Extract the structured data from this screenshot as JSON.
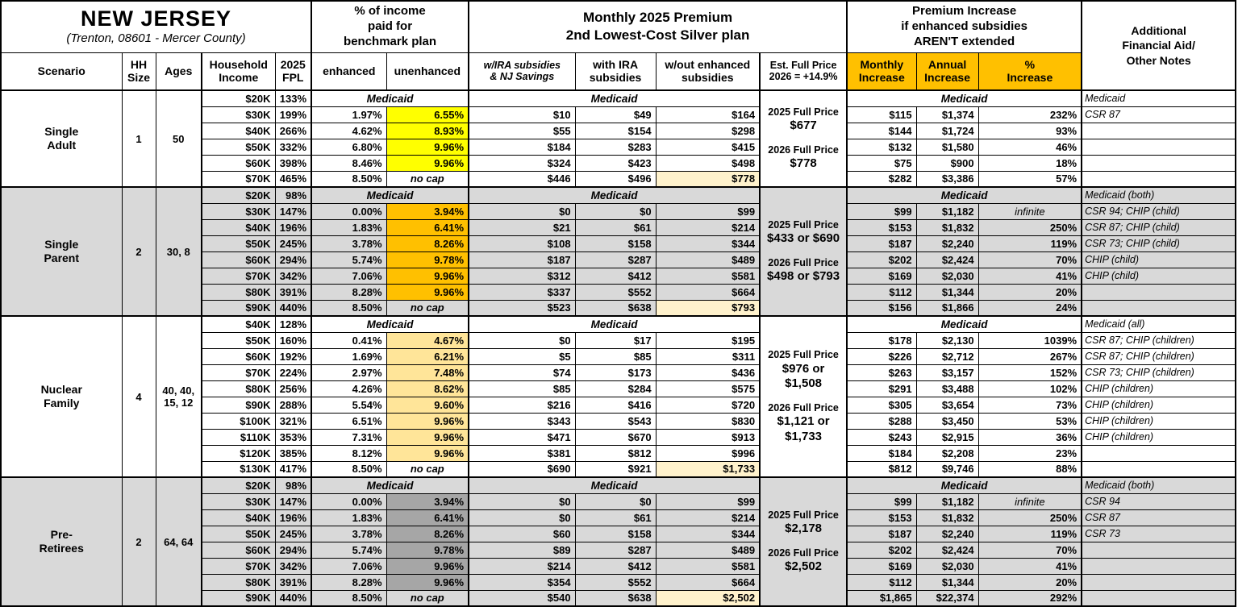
{
  "title": "NEW JERSEY",
  "subtitle": "(Trenton, 08601 - Mercer County)",
  "colors": {
    "header_accent": "#FFC000",
    "highlight_yellow": "#FFFF00",
    "highlight_orange": "#FFC000",
    "highlight_light_orange": "#FFE599",
    "highlight_gray": "#A6A6A6",
    "highlight_cream": "#FFF2CC",
    "section_gray": "#D9D9D9",
    "section_white": "#FFFFFF"
  },
  "labels": {
    "medicaid": "Medicaid",
    "no_cap": "no cap",
    "infinite": "infinite"
  },
  "headers": {
    "pct_income_group": "% of income\npaid for\nbenchmark plan",
    "premium_group": "Monthly 2025 Premium\n2nd Lowest-Cost Silver plan",
    "increase_group": "Premium Increase\nif enhanced subsidies\nAREN'T extended",
    "notes": "Additional\nFinancial Aid/\nOther Notes",
    "scenario": "Scenario",
    "hh_size": "HH\nSize",
    "ages": "Ages",
    "household_income": "Household\nIncome",
    "fpl": "2025\nFPL",
    "enhanced": "enhanced",
    "unenhanced": "unenhanced",
    "w_ira_nj": "w/IRA subsidies\n& NJ Savings",
    "with_ira": "with IRA\nsubsidies",
    "wout_enhanced": "w/out enhanced\nsubsidies",
    "est_full_price": "Est. Full Price\n2026 = +14.9%",
    "monthly_increase": "Monthly\nIncrease",
    "annual_increase": "Annual\nIncrease",
    "pct_increase": "%\nIncrease"
  },
  "sections": [
    {
      "scenario": "Single\nAdult",
      "hh_size": "1",
      "ages": "50",
      "bg": "#FFFFFF",
      "unenhanced_fill": "#FFFF00",
      "full_price": {
        "y2025_label": "2025 Full Price",
        "y2025_value": "$677",
        "y2026_label": "2026 Full Price",
        "y2026_value": "$778"
      },
      "rows": [
        {
          "income": "$20K",
          "fpl": "133%",
          "medicaid": true,
          "note": "Medicaid"
        },
        {
          "income": "$30K",
          "fpl": "199%",
          "enhanced": "1.97%",
          "unenhanced": "6.55%",
          "w_ira": "$10",
          "with_ira": "$49",
          "wout": "$164",
          "monthly": "$115",
          "annual": "$1,374",
          "pct": "232%",
          "note": "CSR 87"
        },
        {
          "income": "$40K",
          "fpl": "266%",
          "enhanced": "4.62%",
          "unenhanced": "8.93%",
          "w_ira": "$55",
          "with_ira": "$154",
          "wout": "$298",
          "monthly": "$144",
          "annual": "$1,724",
          "pct": "93%",
          "note": ""
        },
        {
          "income": "$50K",
          "fpl": "332%",
          "enhanced": "6.80%",
          "unenhanced": "9.96%",
          "w_ira": "$184",
          "with_ira": "$283",
          "wout": "$415",
          "monthly": "$132",
          "annual": "$1,580",
          "pct": "46%",
          "note": ""
        },
        {
          "income": "$60K",
          "fpl": "398%",
          "enhanced": "8.46%",
          "unenhanced": "9.96%",
          "w_ira": "$324",
          "with_ira": "$423",
          "wout": "$498",
          "monthly": "$75",
          "annual": "$900",
          "pct": "18%",
          "note": ""
        },
        {
          "income": "$70K",
          "fpl": "465%",
          "enhanced": "8.50%",
          "unenhanced": "no cap",
          "nocap": true,
          "w_ira": "$446",
          "with_ira": "$496",
          "wout": "$778",
          "wout_hl": true,
          "monthly": "$282",
          "annual": "$3,386",
          "pct": "57%",
          "note": ""
        }
      ]
    },
    {
      "scenario": "Single\nParent",
      "hh_size": "2",
      "ages": "30, 8",
      "bg": "#D9D9D9",
      "unenhanced_fill": "#FFC000",
      "full_price": {
        "y2025_label": "2025 Full Price",
        "y2025_value": "$433 or $690",
        "y2026_label": "2026 Full Price",
        "y2026_value": "$498 or $793"
      },
      "rows": [
        {
          "income": "$20K",
          "fpl": "98%",
          "medicaid": true,
          "note": "Medicaid (both)"
        },
        {
          "income": "$30K",
          "fpl": "147%",
          "enhanced": "0.00%",
          "unenhanced": "3.94%",
          "w_ira": "$0",
          "with_ira": "$0",
          "wout": "$99",
          "monthly": "$99",
          "annual": "$1,182",
          "pct": "infinite",
          "note": "CSR 94; CHIP (child)"
        },
        {
          "income": "$40K",
          "fpl": "196%",
          "enhanced": "1.83%",
          "unenhanced": "6.41%",
          "w_ira": "$21",
          "with_ira": "$61",
          "wout": "$214",
          "monthly": "$153",
          "annual": "$1,832",
          "pct": "250%",
          "note": "CSR 87; CHIP (child)"
        },
        {
          "income": "$50K",
          "fpl": "245%",
          "enhanced": "3.78%",
          "unenhanced": "8.26%",
          "w_ira": "$108",
          "with_ira": "$158",
          "wout": "$344",
          "monthly": "$187",
          "annual": "$2,240",
          "pct": "119%",
          "note": "CSR 73; CHIP (child)"
        },
        {
          "income": "$60K",
          "fpl": "294%",
          "enhanced": "5.74%",
          "unenhanced": "9.78%",
          "w_ira": "$187",
          "with_ira": "$287",
          "wout": "$489",
          "monthly": "$202",
          "annual": "$2,424",
          "pct": "70%",
          "note": "CHIP (child)"
        },
        {
          "income": "$70K",
          "fpl": "342%",
          "enhanced": "7.06%",
          "unenhanced": "9.96%",
          "w_ira": "$312",
          "with_ira": "$412",
          "wout": "$581",
          "monthly": "$169",
          "annual": "$2,030",
          "pct": "41%",
          "note": "CHIP (child)"
        },
        {
          "income": "$80K",
          "fpl": "391%",
          "enhanced": "8.28%",
          "unenhanced": "9.96%",
          "w_ira": "$337",
          "with_ira": "$552",
          "wout": "$664",
          "monthly": "$112",
          "annual": "$1,344",
          "pct": "20%",
          "note": ""
        },
        {
          "income": "$90K",
          "fpl": "440%",
          "enhanced": "8.50%",
          "unenhanced": "no cap",
          "nocap": true,
          "w_ira": "$523",
          "with_ira": "$638",
          "wout": "$793",
          "wout_hl": true,
          "monthly": "$156",
          "annual": "$1,866",
          "pct": "24%",
          "note": ""
        }
      ]
    },
    {
      "scenario": "Nuclear\nFamily",
      "hh_size": "4",
      "ages": "40, 40,\n15, 12",
      "bg": "#FFFFFF",
      "unenhanced_fill": "#FFE599",
      "full_price": {
        "y2025_label": "2025 Full Price",
        "y2025_value": "$976 or\n$1,508",
        "y2026_label": "2026 Full Price",
        "y2026_value": "$1,121 or\n$1,733"
      },
      "rows": [
        {
          "income": "$40K",
          "fpl": "128%",
          "medicaid": true,
          "note": "Medicaid (all)"
        },
        {
          "income": "$50K",
          "fpl": "160%",
          "enhanced": "0.41%",
          "unenhanced": "4.67%",
          "w_ira": "$0",
          "with_ira": "$17",
          "wout": "$195",
          "monthly": "$178",
          "annual": "$2,130",
          "pct": "1039%",
          "note": "CSR 87; CHIP (children)"
        },
        {
          "income": "$60K",
          "fpl": "192%",
          "enhanced": "1.69%",
          "unenhanced": "6.21%",
          "w_ira": "$5",
          "with_ira": "$85",
          "wout": "$311",
          "monthly": "$226",
          "annual": "$2,712",
          "pct": "267%",
          "note": "CSR 87; CHIP (children)"
        },
        {
          "income": "$70K",
          "fpl": "224%",
          "enhanced": "2.97%",
          "unenhanced": "7.48%",
          "w_ira": "$74",
          "with_ira": "$173",
          "wout": "$436",
          "monthly": "$263",
          "annual": "$3,157",
          "pct": "152%",
          "note": "CSR 73; CHIP (children)"
        },
        {
          "income": "$80K",
          "fpl": "256%",
          "enhanced": "4.26%",
          "unenhanced": "8.62%",
          "w_ira": "$85",
          "with_ira": "$284",
          "wout": "$575",
          "monthly": "$291",
          "annual": "$3,488",
          "pct": "102%",
          "note": "CHIP (children)"
        },
        {
          "income": "$90K",
          "fpl": "288%",
          "enhanced": "5.54%",
          "unenhanced": "9.60%",
          "w_ira": "$216",
          "with_ira": "$416",
          "wout": "$720",
          "monthly": "$305",
          "annual": "$3,654",
          "pct": "73%",
          "note": "CHIP (children)"
        },
        {
          "income": "$100K",
          "fpl": "321%",
          "enhanced": "6.51%",
          "unenhanced": "9.96%",
          "w_ira": "$343",
          "with_ira": "$543",
          "wout": "$830",
          "monthly": "$288",
          "annual": "$3,450",
          "pct": "53%",
          "note": "CHIP (children)"
        },
        {
          "income": "$110K",
          "fpl": "353%",
          "enhanced": "7.31%",
          "unenhanced": "9.96%",
          "w_ira": "$471",
          "with_ira": "$670",
          "wout": "$913",
          "monthly": "$243",
          "annual": "$2,915",
          "pct": "36%",
          "note": "CHIP (children)"
        },
        {
          "income": "$120K",
          "fpl": "385%",
          "enhanced": "8.12%",
          "unenhanced": "9.96%",
          "w_ira": "$381",
          "with_ira": "$812",
          "wout": "$996",
          "monthly": "$184",
          "annual": "$2,208",
          "pct": "23%",
          "note": ""
        },
        {
          "income": "$130K",
          "fpl": "417%",
          "enhanced": "8.50%",
          "unenhanced": "no cap",
          "nocap": true,
          "w_ira": "$690",
          "with_ira": "$921",
          "wout": "$1,733",
          "wout_hl": true,
          "monthly": "$812",
          "annual": "$9,746",
          "pct": "88%",
          "note": ""
        }
      ]
    },
    {
      "scenario": "Pre-\nRetirees",
      "hh_size": "2",
      "ages": "64, 64",
      "bg": "#D9D9D9",
      "unenhanced_fill": "#A6A6A6",
      "full_price": {
        "y2025_label": "2025 Full Price",
        "y2025_value": "$2,178",
        "y2026_label": "2026 Full Price",
        "y2026_value": "$2,502"
      },
      "rows": [
        {
          "income": "$20K",
          "fpl": "98%",
          "medicaid": true,
          "note": "Medicaid (both)"
        },
        {
          "income": "$30K",
          "fpl": "147%",
          "enhanced": "0.00%",
          "unenhanced": "3.94%",
          "w_ira": "$0",
          "with_ira": "$0",
          "wout": "$99",
          "monthly": "$99",
          "annual": "$1,182",
          "pct": "infinite",
          "note": "CSR 94"
        },
        {
          "income": "$40K",
          "fpl": "196%",
          "enhanced": "1.83%",
          "unenhanced": "6.41%",
          "w_ira": "$0",
          "with_ira": "$61",
          "wout": "$214",
          "monthly": "$153",
          "annual": "$1,832",
          "pct": "250%",
          "note": "CSR 87"
        },
        {
          "income": "$50K",
          "fpl": "245%",
          "enhanced": "3.78%",
          "unenhanced": "8.26%",
          "w_ira": "$60",
          "with_ira": "$158",
          "wout": "$344",
          "monthly": "$187",
          "annual": "$2,240",
          "pct": "119%",
          "note": "CSR 73"
        },
        {
          "income": "$60K",
          "fpl": "294%",
          "enhanced": "5.74%",
          "unenhanced": "9.78%",
          "w_ira": "$89",
          "with_ira": "$287",
          "wout": "$489",
          "monthly": "$202",
          "annual": "$2,424",
          "pct": "70%",
          "note": ""
        },
        {
          "income": "$70K",
          "fpl": "342%",
          "enhanced": "7.06%",
          "unenhanced": "9.96%",
          "w_ira": "$214",
          "with_ira": "$412",
          "wout": "$581",
          "monthly": "$169",
          "annual": "$2,030",
          "pct": "41%",
          "note": ""
        },
        {
          "income": "$80K",
          "fpl": "391%",
          "enhanced": "8.28%",
          "unenhanced": "9.96%",
          "w_ira": "$354",
          "with_ira": "$552",
          "wout": "$664",
          "monthly": "$112",
          "annual": "$1,344",
          "pct": "20%",
          "note": ""
        },
        {
          "income": "$90K",
          "fpl": "440%",
          "enhanced": "8.50%",
          "unenhanced": "no cap",
          "nocap": true,
          "w_ira": "$540",
          "with_ira": "$638",
          "wout": "$2,502",
          "wout_hl": true,
          "monthly": "$1,865",
          "annual": "$22,374",
          "pct": "292%",
          "note": ""
        }
      ]
    }
  ]
}
